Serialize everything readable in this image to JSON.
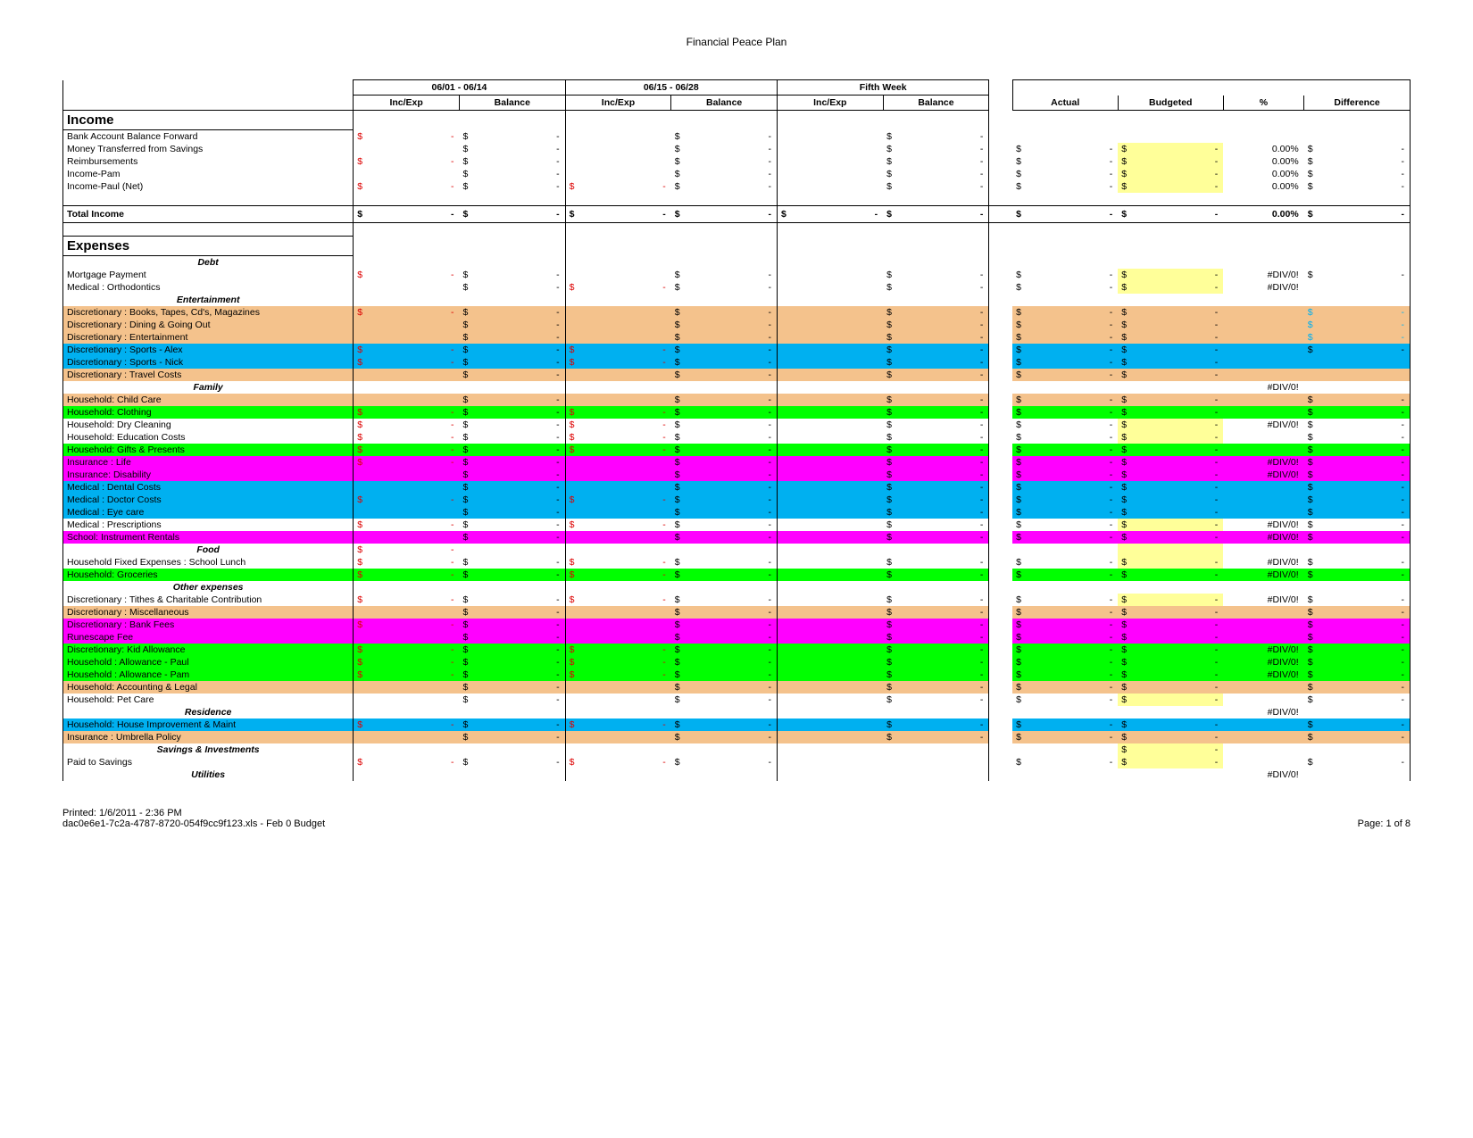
{
  "title": "Financial Peace Plan",
  "periods": [
    "06/01 - 06/14",
    "06/15 - 06/28",
    "Fifth Week"
  ],
  "subheaders": [
    "Inc/Exp",
    "Balance"
  ],
  "summary_headers": [
    "Actual",
    "Budgeted",
    "%",
    "Difference"
  ],
  "colors": {
    "tan": "#f4c28c",
    "cyan": "#00b0f0",
    "magenta": "#ff00ff",
    "green": "#00ff00",
    "yellow": "#ffff99"
  },
  "income": {
    "title": "Income",
    "rows": [
      {
        "label": "Bank Account Balance Forward",
        "p1_inc_red": true,
        "p1_bal": true,
        "p2_bal": true,
        "p3_bal": true
      },
      {
        "label": "Money Transferred from Savings",
        "p1_bal": true,
        "p2_bal": true,
        "p3_bal": true,
        "actual": true,
        "budget": true,
        "budget_hl": "yellow",
        "pct": "0.00%",
        "diff": true
      },
      {
        "label": "Reimbursements",
        "p1_inc_red": true,
        "p1_bal": true,
        "p2_bal": true,
        "p3_bal": true,
        "actual": true,
        "budget": true,
        "budget_hl": "yellow",
        "pct": "0.00%",
        "diff": true
      },
      {
        "label": "Income-Pam",
        "p1_bal": true,
        "p2_bal": true,
        "p3_bal": true,
        "actual": true,
        "budget": true,
        "budget_hl": "yellow",
        "pct": "0.00%",
        "diff": true
      },
      {
        "label": "Income-Paul (Net)",
        "p1_inc_red": true,
        "p1_bal": true,
        "p2_inc_red": true,
        "p2_bal": true,
        "p3_bal": true,
        "actual": true,
        "budget": true,
        "budget_hl": "yellow",
        "pct": "0.00%",
        "diff": true
      }
    ],
    "total_label": "Total Income",
    "total_pct": "0.00%"
  },
  "expenses": {
    "title": "Expenses",
    "groups": [
      {
        "header": "Debt",
        "rows": [
          {
            "label": "Mortgage Payment",
            "p1_inc_red": true,
            "p1_bal": true,
            "p2_bal": true,
            "p3_bal": true,
            "actual": true,
            "budget": true,
            "budget_hl": "yellow",
            "pct": "#DIV/0!",
            "diff": true
          },
          {
            "label": "Medical : Orthodontics",
            "p1_bal": true,
            "p2_inc_red": true,
            "p2_bal": true,
            "p3_bal": true,
            "actual": true,
            "budget": true,
            "budget_hl": "yellow",
            "pct": "#DIV/0!"
          }
        ]
      },
      {
        "header": "Entertainment",
        "rows": [
          {
            "label": "Discretionary : Books, Tapes, Cd's, Magazines",
            "bg": "tan",
            "p1_inc_red": true,
            "p1_bal": true,
            "p2_bal": true,
            "p3_bal": true,
            "actual": true,
            "budget": true,
            "diff": true,
            "diff_cyan": true
          },
          {
            "label": "Discretionary : Dining & Going Out",
            "bg": "tan",
            "p1_bal": true,
            "p2_bal": true,
            "p3_bal": true,
            "actual": true,
            "budget": true,
            "diff": true,
            "diff_cyan": true
          },
          {
            "label": "Discretionary : Entertainment",
            "bg": "tan",
            "p1_bal": true,
            "p2_bal": true,
            "p3_bal": true,
            "actual": true,
            "budget": true,
            "diff": true,
            "diff_cyan": true
          },
          {
            "label": "Discretionary : Sports - Alex",
            "bg": "cyan",
            "p1_inc_red": true,
            "p1_bal": true,
            "p2_inc_red": true,
            "p2_bal": true,
            "p3_bal": true,
            "actual": true,
            "budget": true,
            "diff": true
          },
          {
            "label": "Discretionary : Sports - Nick",
            "bg": "cyan",
            "p1_inc_red": true,
            "p1_bal": true,
            "p2_inc_red": true,
            "p2_bal": true,
            "p3_bal": true,
            "actual": true,
            "budget": true,
            "diff": true,
            "diff_cyan": true
          },
          {
            "label": "Discretionary : Travel Costs",
            "bg": "tan",
            "p1_bal": true,
            "p2_bal": true,
            "p3_bal": true,
            "actual": true,
            "budget": true
          }
        ]
      },
      {
        "header": "Family",
        "header_pct": "#DIV/0!",
        "rows": [
          {
            "label": "Household: Child Care",
            "bg": "tan",
            "p1_bal": true,
            "p2_bal": true,
            "p3_bal": true,
            "actual": true,
            "budget": true,
            "diff": true
          },
          {
            "label": "Household: Clothing",
            "bg": "green",
            "p1_inc_red": true,
            "p1_bal": true,
            "p2_inc_red": true,
            "p2_bal": true,
            "p3_bal": true,
            "actual": true,
            "budget": true,
            "diff": true
          },
          {
            "label": "Household: Dry Cleaning",
            "p1_inc_red": true,
            "p1_bal": true,
            "p2_inc_red": true,
            "p2_bal": true,
            "p3_bal": true,
            "actual": true,
            "budget": true,
            "budget_hl": "yellow",
            "pct": "#DIV/0!",
            "diff": true
          },
          {
            "label": "Household: Education Costs",
            "p1_inc_red": true,
            "p1_bal": true,
            "p2_inc_red": true,
            "p2_bal": true,
            "p3_bal": true,
            "actual": true,
            "budget": true,
            "budget_hl": "yellow",
            "diff": true
          },
          {
            "label": "Household: Gifts & Presents",
            "bg": "green",
            "p1_inc_red": true,
            "p1_bal": true,
            "p2_inc_red": true,
            "p2_bal": true,
            "p3_bal": true,
            "actual": true,
            "budget": true,
            "diff": true
          },
          {
            "label": "Insurance : Life",
            "bg": "magenta",
            "p1_inc_red": true,
            "p1_bal": true,
            "p2_bal": true,
            "p3_bal": true,
            "actual": true,
            "budget": true,
            "pct": "#DIV/0!",
            "diff": true
          },
          {
            "label": "Insurance: Disability",
            "bg": "magenta",
            "p1_bal": true,
            "p2_bal": true,
            "p3_bal": true,
            "actual": true,
            "budget": true,
            "pct": "#DIV/0!",
            "diff": true
          },
          {
            "label": "Medical : Dental Costs",
            "bg": "cyan",
            "p1_bal": true,
            "p2_bal": true,
            "p3_bal": true,
            "actual": true,
            "budget": true,
            "diff": true
          },
          {
            "label": "Medical : Doctor Costs",
            "bg": "cyan",
            "p1_inc_red": true,
            "p1_bal": true,
            "p2_inc_red": true,
            "p2_bal": true,
            "p3_bal": true,
            "actual": true,
            "budget": true,
            "diff": true
          },
          {
            "label": "Medical : Eye care",
            "bg": "cyan",
            "p1_bal": true,
            "p2_bal": true,
            "p3_bal": true,
            "actual": true,
            "budget": true,
            "diff": true
          },
          {
            "label": "Medical : Prescriptions",
            "p1_inc_red": true,
            "p1_bal": true,
            "p2_inc_red": true,
            "p2_bal": true,
            "p3_bal": true,
            "actual": true,
            "budget": true,
            "budget_hl": "yellow",
            "pct": "#DIV/0!",
            "diff": true
          },
          {
            "label": "School: Instrument Rentals",
            "bg": "magenta",
            "p1_bal": true,
            "p2_bal": true,
            "p3_bal": true,
            "actual": true,
            "budget": true,
            "pct": "#DIV/0!",
            "diff": true
          }
        ]
      },
      {
        "header": "Food",
        "header_inc_red": true,
        "header_budget_hl": "yellow",
        "rows": [
          {
            "label": "Household Fixed Expenses : School Lunch",
            "p1_inc_red": true,
            "p1_bal": true,
            "p2_inc_red": true,
            "p2_bal": true,
            "p3_bal": true,
            "actual": true,
            "budget": true,
            "budget_hl": "yellow",
            "pct": "#DIV/0!",
            "diff": true
          },
          {
            "label": "Household: Groceries",
            "bg": "green",
            "p1_inc_red": true,
            "p1_bal": true,
            "p2_inc_red": true,
            "p2_bal": true,
            "p3_bal": true,
            "actual": true,
            "budget": true,
            "pct": "#DIV/0!",
            "diff": true
          }
        ]
      },
      {
        "header": "Other expenses",
        "rows": [
          {
            "label": "Discretionary : Tithes & Charitable Contribution",
            "p1_inc_red": true,
            "p1_bal": true,
            "p2_inc_red": true,
            "p2_bal": true,
            "p3_bal": true,
            "actual": true,
            "budget": true,
            "budget_hl": "yellow",
            "pct": "#DIV/0!",
            "diff": true
          },
          {
            "label": "Discretionary : Miscellaneous",
            "bg": "tan",
            "p1_bal": true,
            "p2_bal": true,
            "p3_bal": true,
            "actual": true,
            "budget": true,
            "diff": true
          },
          {
            "label": "Discretionary : Bank Fees",
            "bg": "magenta",
            "p1_inc_red": true,
            "p1_bal": true,
            "p2_bal": true,
            "p3_bal": true,
            "actual": true,
            "budget": true,
            "diff": true
          },
          {
            "label": "Runescape Fee",
            "bg": "magenta",
            "p1_bal": true,
            "p2_bal": true,
            "p3_bal": true,
            "actual": true,
            "budget": true,
            "diff": true
          },
          {
            "label": "Discretionary: Kid Allowance",
            "bg": "green",
            "p1_inc_red": true,
            "p1_bal": true,
            "p2_inc_red": true,
            "p2_bal": true,
            "p3_bal": true,
            "actual": true,
            "budget": true,
            "pct": "#DIV/0!",
            "diff": true
          },
          {
            "label": "Household  : Allowance - Paul",
            "bg": "green",
            "p1_inc_red": true,
            "p1_bal": true,
            "p2_inc_red": true,
            "p2_bal": true,
            "p3_bal": true,
            "actual": true,
            "budget": true,
            "pct": "#DIV/0!",
            "diff": true
          },
          {
            "label": "Household  : Allowance - Pam",
            "bg": "green",
            "p1_inc_red": true,
            "p1_bal": true,
            "p2_inc_red": true,
            "p2_bal": true,
            "p3_bal": true,
            "actual": true,
            "budget": true,
            "pct": "#DIV/0!",
            "diff": true
          },
          {
            "label": "Household: Accounting & Legal",
            "bg": "tan",
            "p1_bal": true,
            "p2_bal": true,
            "p3_bal": true,
            "actual": true,
            "budget": true,
            "diff": true
          },
          {
            "label": "Household: Pet Care",
            "p1_bal": true,
            "p2_bal": true,
            "p3_bal": true,
            "actual": true,
            "budget": true,
            "budget_hl": "yellow",
            "diff": true
          }
        ]
      },
      {
        "header": "Residence",
        "header_pct": "#DIV/0!",
        "rows": [
          {
            "label": "Household: House Improvement & Maint",
            "bg": "cyan",
            "p1_inc_red": true,
            "p1_bal": true,
            "p2_inc_red": true,
            "p2_bal": true,
            "p3_bal": true,
            "actual": true,
            "budget": true,
            "diff": true
          },
          {
            "label": "Insurance : Umbrella Policy",
            "bg": "tan",
            "p1_bal": true,
            "p2_bal": true,
            "p3_bal": true,
            "actual": true,
            "budget": true,
            "diff": true
          }
        ]
      },
      {
        "header": "Savings & Investments",
        "header_budget": true,
        "header_budget_hl": "yellow",
        "rows": [
          {
            "label": "Paid to Savings",
            "p1_inc_red": true,
            "p1_bal": true,
            "p2_inc_red": true,
            "p2_bal": true,
            "actual": true,
            "budget": true,
            "budget_hl": "yellow",
            "diff": true
          }
        ]
      },
      {
        "header": "Utilities",
        "header_pct": "#DIV/0!",
        "rows": []
      }
    ]
  },
  "footer": {
    "printed": "Printed: 1/6/2011 - 2:36 PM",
    "file": "dac0e6e1-7c2a-4787-8720-054f9cc9f123.xls - Feb 0 Budget",
    "page": "Page: 1 of 8"
  }
}
